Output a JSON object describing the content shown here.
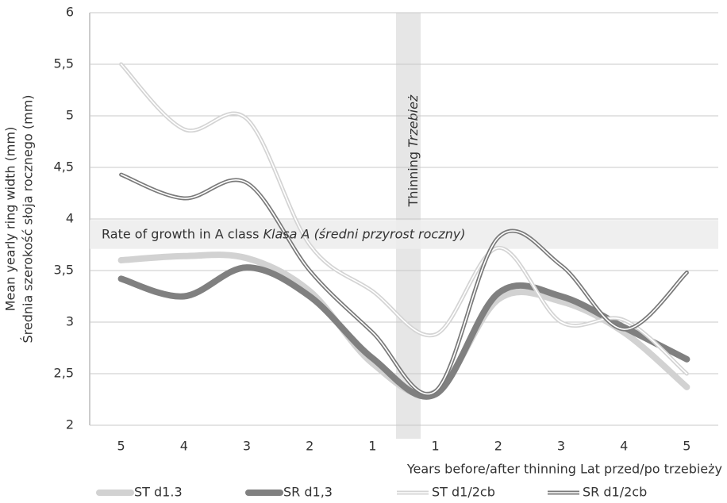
{
  "chart_data": {
    "type": "line",
    "categories": [
      "5",
      "4",
      "3",
      "2",
      "1",
      "1",
      "2",
      "3",
      "4",
      "5"
    ],
    "x_label": "Years before/after thinning Lat przed/po trzebieży",
    "y_label": [
      "Mean yearly ring width (mm)",
      "Średnia szerokość słoja rocznego (mm)"
    ],
    "ylim": [
      2,
      6
    ],
    "yticks": [
      2,
      {
        "value": 2.5,
        "label": "2,5"
      },
      3,
      {
        "value": 3.5,
        "label": "3,5"
      },
      4,
      {
        "value": 4.5,
        "label": "4,5"
      },
      5,
      {
        "value": 5.5,
        "label": "5,5"
      },
      6
    ],
    "grid": true,
    "legend": "bottom",
    "annotations": {
      "thinning": [
        "Thinning",
        "Trzebież"
      ],
      "growth_band": {
        "text": [
          "Rate of growth in A class",
          "Klasa A (średni przyrost roczny)"
        ],
        "range": [
          3.71,
          3.99
        ]
      }
    },
    "series": [
      {
        "name": "ST d1.3",
        "color": "#d2d2d2",
        "style": "solid",
        "values": [
          3.6,
          3.64,
          3.62,
          3.3,
          2.6,
          2.32,
          3.22,
          3.2,
          2.9,
          2.37
        ]
      },
      {
        "name": "SR d1,3",
        "color": "#808080",
        "style": "solid",
        "values": [
          3.42,
          3.25,
          3.53,
          3.25,
          2.65,
          2.3,
          3.28,
          3.25,
          2.95,
          2.64
        ]
      },
      {
        "name": "ST d1/2cb",
        "color": "#d4d4d4",
        "style": "double",
        "values": [
          5.5,
          4.87,
          4.97,
          3.75,
          3.3,
          2.88,
          3.72,
          3.0,
          3.02,
          2.5
        ]
      },
      {
        "name": "SR d1/2cb",
        "color": "#7a7a7a",
        "style": "double",
        "values": [
          4.43,
          4.2,
          4.35,
          3.5,
          2.9,
          2.33,
          3.82,
          3.55,
          2.93,
          3.48
        ]
      }
    ]
  }
}
